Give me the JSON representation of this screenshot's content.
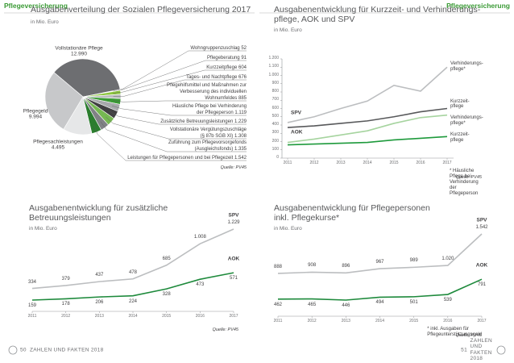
{
  "header": {
    "left": "Pflegeversicherung",
    "right": "Pflegeversicherung"
  },
  "footer": {
    "left_page": "50",
    "left_text": "ZAHLEN UND FAKTEN 2018",
    "right_page": "51",
    "right_text": "ZAHLEN UND FAKTEN 2018"
  },
  "chart_data": [
    {
      "type": "pie",
      "title": "Ausgabenverteilung der Sozialen Pflegeversicherung 2017",
      "subtitle": "in Mio. Euro",
      "source": "Quelle: PV45",
      "categories": [
        "Vollstationäre Pflege",
        "Wohngruppenzuschlag",
        "Pflegeberatung",
        "Kurzzeitpflege",
        "Tages- und Nachtpflege",
        "Pflegehilfsmittel und Maßnahmen zur\nVerbesserung des individuellen\nWohnumfeldes",
        "Häusliche Pflege bei Verhinderung\nder Pflegeperson",
        "Zusätzliche Betreuungsleistungen",
        "Vollstationäre Vergütungszuschläge\n(§ 87b SGB XI)",
        "Zuführung zum Pflegevorsorgefonds\n(Ausgleichsfonds)",
        "Leistungen für Pflegepersonen und bei Pflegezeit",
        "Pflegesachleistungen",
        "Pflegegeld"
      ],
      "values": [
        12990,
        52,
        91,
        604,
        676,
        885,
        1119,
        1229,
        1308,
        1335,
        1542,
        4495,
        9994
      ],
      "value_labels": [
        "12.990",
        "52",
        "91",
        "604",
        "676",
        "885",
        "1.119",
        "1.229",
        "1.308",
        "1.335",
        "1.542",
        "4.495",
        "9.994"
      ],
      "colors": [
        "#6d6e71",
        "#939598",
        "#58595b",
        "#8dc63f",
        "#bcbec0",
        "#3a9a35",
        "#a7a9ac",
        "#414042",
        "#76b852",
        "#808285",
        "#2b7d2e",
        "#e6e7e8",
        "#c7c8ca"
      ]
    },
    {
      "type": "line",
      "title": "Ausgabenentwicklung für zusätzliche\nBetreuungsleistungen",
      "subtitle": "in Mio. Euro",
      "source": "Quelle: PV45",
      "categories": [
        "2011",
        "2012",
        "2013",
        "2014",
        "2015",
        "2016",
        "2017"
      ],
      "series": [
        {
          "name": "SPV",
          "color": "#bcbec0",
          "values": [
            334,
            379,
            437,
            478,
            685,
            1008,
            1229
          ],
          "value_labels": [
            "334",
            "379",
            "437",
            "478",
            "685",
            "1.008",
            "1.229"
          ]
        },
        {
          "name": "AOK",
          "color": "#1e8a3c",
          "values": [
            159,
            178,
            206,
            224,
            328,
            473,
            571
          ],
          "value_labels": [
            "159",
            "178",
            "206",
            "224",
            "328",
            "473",
            "571"
          ]
        }
      ]
    },
    {
      "type": "line",
      "title": "Ausgabenentwicklung für Kurzzeit- und Verhinderungs-\npflege, AOK und SPV",
      "subtitle": "in Mio. Euro",
      "footnote": "* Häusliche Pflege bei Verhinderung der Pflegeperson",
      "source": "Quelle: PV45",
      "categories": [
        "2011",
        "2012",
        "2013",
        "2014",
        "2015",
        "2016",
        "2017"
      ],
      "ylim": [
        0,
        1200
      ],
      "yticks": [
        0,
        100,
        200,
        300,
        400,
        500,
        600,
        700,
        800,
        900,
        {
          "value": 1000,
          "label": "1.000"
        },
        {
          "value": 1100,
          "label": "1.100"
        },
        {
          "value": 1200,
          "label": "1.200"
        }
      ],
      "grid": false,
      "group_labels": [
        "SPV",
        "AOK"
      ],
      "series": [
        {
          "name": "Verhinderungs-\npflege*",
          "color": "#bcbec0",
          "values": [
            430,
            500,
            600,
            690,
            880,
            810,
            1100
          ]
        },
        {
          "name": "Kurzzeit-\npflege",
          "color": "#58595b",
          "values": [
            370,
            390,
            420,
            450,
            500,
            560,
            600
          ]
        },
        {
          "name": "Verhinderungs-\npflege*",
          "color": "#a6d49f",
          "values": [
            190,
            230,
            280,
            330,
            420,
            490,
            520
          ]
        },
        {
          "name": "Kurzzeit-\npflege",
          "color": "#1e9a3c",
          "values": [
            160,
            170,
            180,
            190,
            220,
            240,
            260
          ]
        }
      ]
    },
    {
      "type": "line",
      "title": "Ausgabenentwicklung für Pflegepersonen\ninkl. Pflegekurse*",
      "subtitle": "in Mio. Euro",
      "footnote": "* inkl. Ausgaben für Pflegeunterstützungsgeld",
      "source": "Quelle: PV45",
      "categories": [
        "2011",
        "2012",
        "2013",
        "2014",
        "2015",
        "2016",
        "2017"
      ],
      "series": [
        {
          "name": "SPV",
          "color": "#bcbec0",
          "values": [
            888,
            908,
            896,
            967,
            989,
            1020,
            1542
          ],
          "value_labels": [
            "888",
            "908",
            "896",
            "967",
            "989",
            "1.020",
            "1.542"
          ]
        },
        {
          "name": "AOK",
          "color": "#1e8a3c",
          "values": [
            462,
            465,
            446,
            494,
            501,
            539,
            791
          ],
          "value_labels": [
            "462",
            "465",
            "446",
            "494",
            "501",
            "539",
            "791"
          ]
        }
      ]
    }
  ]
}
